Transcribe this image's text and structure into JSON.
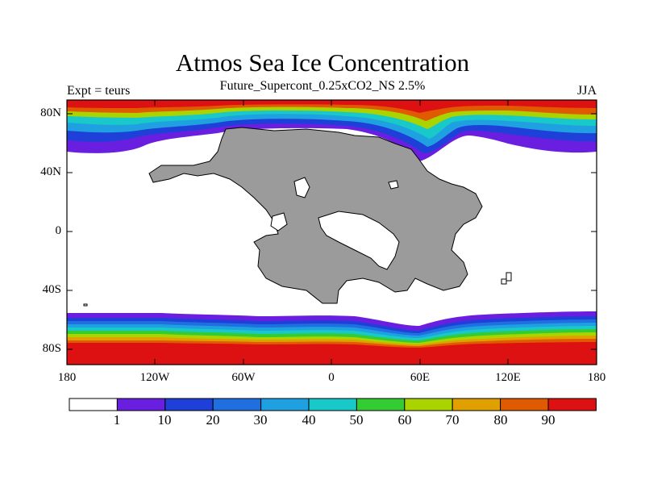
{
  "title": "Atmos Sea Ice Concentration",
  "subtitle": "Future_Supercont_0.25xCO2_NS 2.5%",
  "left_label": "Expt = teurs",
  "right_label": "JJA",
  "map": {
    "y_ticks": [
      "80N",
      "40N",
      "0",
      "40S",
      "80S"
    ],
    "x_ticks": [
      "180",
      "120W",
      "60W",
      "0",
      "60E",
      "120E",
      "180"
    ],
    "land_color": "#9b9b9b"
  },
  "colorbar": {
    "colors": [
      "#ffffff",
      "#6a1fe0",
      "#1e3fd8",
      "#1f6fe0",
      "#1fa0e0",
      "#19c8c8",
      "#33cc33",
      "#aad400",
      "#e0a000",
      "#e05a00",
      "#dd1111"
    ],
    "labels": [
      "1",
      "10",
      "20",
      "30",
      "40",
      "50",
      "60",
      "70",
      "80",
      "90"
    ]
  }
}
